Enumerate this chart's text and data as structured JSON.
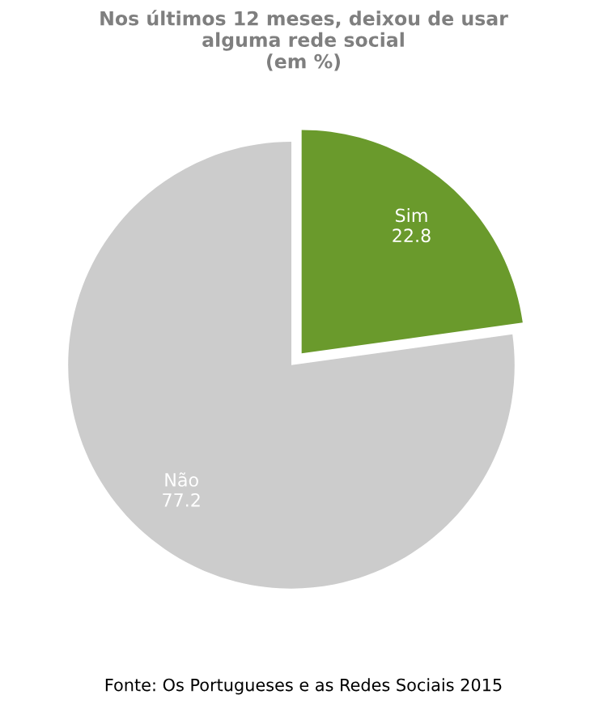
{
  "chart_data": {
    "type": "pie",
    "title": "Nos últimos 12 meses, deixou de usar\nalguma rede social\n(em %)",
    "categories": [
      "Sim",
      "Não"
    ],
    "values": [
      22.8,
      77.2
    ],
    "colors": [
      "#6a9a2c",
      "#cccccc"
    ],
    "data_labels": true,
    "legend": false,
    "annotations": [
      "Fonte: Os Portugueses e as Redes Sociais 2015"
    ]
  }
}
